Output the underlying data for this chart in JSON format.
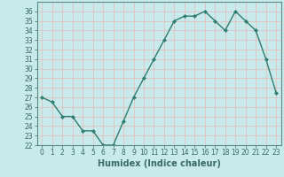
{
  "x": [
    0,
    1,
    2,
    3,
    4,
    5,
    6,
    7,
    8,
    9,
    10,
    11,
    12,
    13,
    14,
    15,
    16,
    17,
    18,
    19,
    20,
    21,
    22,
    23
  ],
  "y": [
    27,
    26.5,
    25,
    25,
    23.5,
    23.5,
    22,
    22,
    24.5,
    27,
    29,
    31,
    33,
    35,
    35.5,
    35.5,
    36,
    35,
    34,
    36,
    35,
    34,
    31,
    27.5
  ],
  "line_color": "#2e7d6e",
  "marker_color": "#2e7d6e",
  "bg_color": "#c8eaea",
  "grid_color": "#e8b8b8",
  "xlabel": "Humidex (Indice chaleur)",
  "xlim": [
    -0.5,
    23.5
  ],
  "ylim": [
    22,
    37
  ],
  "yticks": [
    22,
    23,
    24,
    25,
    26,
    27,
    28,
    29,
    30,
    31,
    32,
    33,
    34,
    35,
    36
  ],
  "xticks": [
    0,
    1,
    2,
    3,
    4,
    5,
    6,
    7,
    8,
    9,
    10,
    11,
    12,
    13,
    14,
    15,
    16,
    17,
    18,
    19,
    20,
    21,
    22,
    23
  ],
  "tick_fontsize": 5.5,
  "xlabel_fontsize": 7,
  "spine_color": "#5a8a80",
  "tick_color": "#3a6a60",
  "marker_size": 2.2,
  "line_width": 1.0
}
